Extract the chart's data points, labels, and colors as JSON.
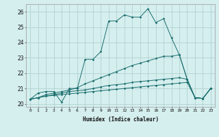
{
  "xlabel": "Humidex (Indice chaleur)",
  "background_color": "#d5eeee",
  "grid_color": "#aacccc",
  "line_color": "#1a6e6e",
  "xlim": [
    -0.5,
    23.5
  ],
  "ylim": [
    19.8,
    26.5
  ],
  "xticks": [
    0,
    1,
    2,
    3,
    4,
    5,
    6,
    7,
    8,
    9,
    10,
    11,
    12,
    13,
    14,
    15,
    16,
    17,
    18,
    19,
    20,
    21,
    22,
    23
  ],
  "yticks": [
    20,
    21,
    22,
    23,
    24,
    25,
    26
  ],
  "series": [
    [
      20.3,
      20.7,
      20.8,
      20.8,
      20.1,
      21.0,
      21.0,
      22.9,
      22.9,
      23.4,
      25.4,
      25.4,
      25.8,
      25.65,
      25.65,
      26.2,
      25.3,
      25.55,
      24.3,
      23.2,
      21.6,
      20.4,
      20.35,
      21.0
    ],
    [
      20.3,
      20.4,
      20.6,
      20.7,
      20.8,
      20.9,
      21.05,
      21.3,
      21.5,
      21.7,
      21.9,
      22.1,
      22.3,
      22.5,
      22.65,
      22.8,
      22.95,
      23.1,
      23.1,
      23.2,
      21.6,
      20.4,
      20.35,
      21.0
    ],
    [
      20.3,
      20.4,
      20.5,
      20.6,
      20.7,
      20.8,
      20.85,
      20.9,
      21.0,
      21.1,
      21.2,
      21.25,
      21.3,
      21.4,
      21.45,
      21.5,
      21.55,
      21.6,
      21.65,
      21.7,
      21.6,
      20.4,
      20.35,
      21.0
    ],
    [
      20.3,
      20.4,
      20.5,
      20.55,
      20.6,
      20.65,
      20.7,
      20.75,
      20.8,
      20.85,
      20.9,
      20.95,
      21.0,
      21.05,
      21.1,
      21.15,
      21.2,
      21.25,
      21.3,
      21.35,
      21.4,
      20.4,
      20.35,
      21.0
    ]
  ],
  "figsize": [
    3.2,
    2.0
  ],
  "dpi": 100
}
